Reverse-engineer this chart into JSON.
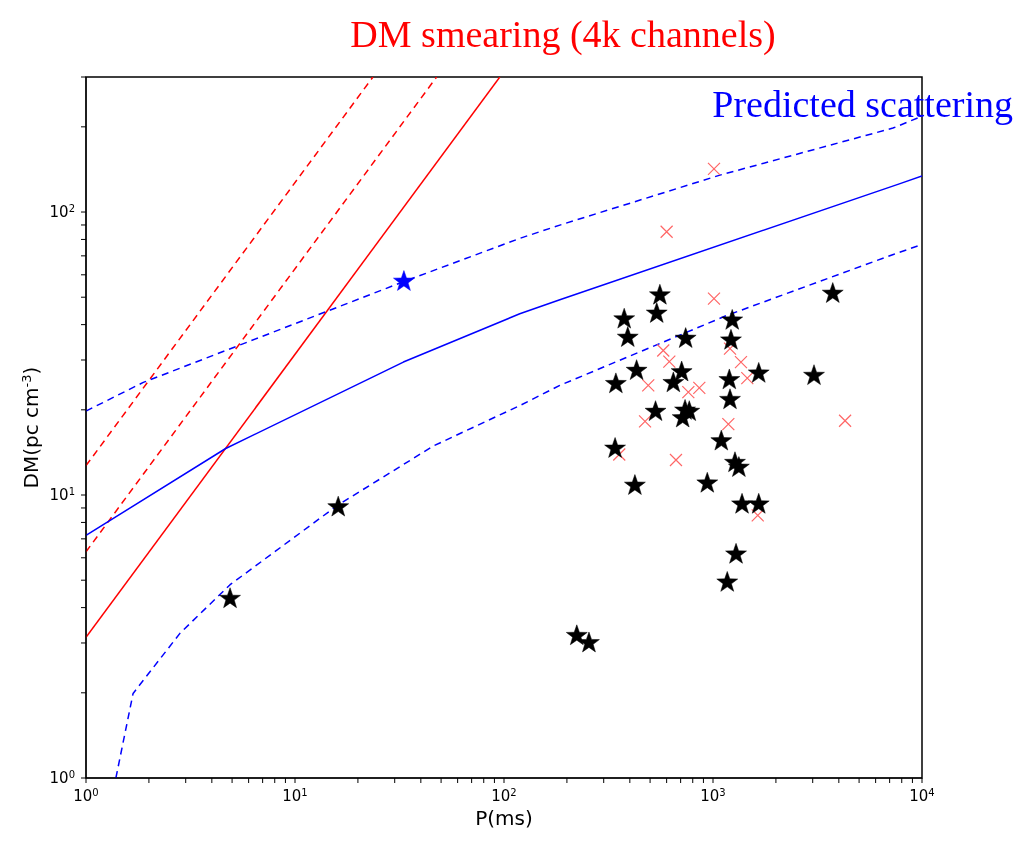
{
  "chart_data": {
    "type": "scatter",
    "title": "DM smearing (4k channels)",
    "annotations": [
      "Predicted scattering"
    ],
    "xlabel": "P(ms)",
    "ylabel": "DM(pc cm$^{-3}$)",
    "log": "xy",
    "xlim": [
      1,
      10000
    ],
    "ylim": [
      1,
      300
    ],
    "xticks": [
      {
        "value": 1,
        "label": "10$^{0}$"
      },
      {
        "value": 2,
        "label": null
      },
      {
        "value": 3,
        "label": null
      },
      {
        "value": 4,
        "label": null
      },
      {
        "value": 5,
        "label": null
      },
      {
        "value": 6,
        "label": null
      },
      {
        "value": 7,
        "label": null
      },
      {
        "value": 8,
        "label": null
      },
      {
        "value": 9,
        "label": null
      },
      {
        "value": 10,
        "label": "10$^{1}$"
      },
      {
        "value": 20,
        "label": null
      },
      {
        "value": 30,
        "label": null
      },
      {
        "value": 40,
        "label": null
      },
      {
        "value": 50,
        "label": null
      },
      {
        "value": 60,
        "label": null
      },
      {
        "value": 70,
        "label": null
      },
      {
        "value": 80,
        "label": null
      },
      {
        "value": 90,
        "label": null
      },
      {
        "value": 100,
        "label": "10$^{2}$"
      },
      {
        "value": 200,
        "label": null
      },
      {
        "value": 300,
        "label": null
      },
      {
        "value": 400,
        "label": null
      },
      {
        "value": 500,
        "label": null
      },
      {
        "value": 600,
        "label": null
      },
      {
        "value": 700,
        "label": null
      },
      {
        "value": 800,
        "label": null
      },
      {
        "value": 900,
        "label": null
      },
      {
        "value": 1000,
        "label": "10$^{3}$"
      },
      {
        "value": 2000,
        "label": null
      },
      {
        "value": 3000,
        "label": null
      },
      {
        "value": 4000,
        "label": null
      },
      {
        "value": 5000,
        "label": null
      },
      {
        "value": 6000,
        "label": null
      },
      {
        "value": 7000,
        "label": null
      },
      {
        "value": 8000,
        "label": null
      },
      {
        "value": 9000,
        "label": null
      },
      {
        "value": 10000,
        "label": "10$^{4}$"
      }
    ],
    "yticks": [
      {
        "value": 1,
        "label": "10$^{0}$"
      },
      {
        "value": 2,
        "label": null
      },
      {
        "value": 3,
        "label": null
      },
      {
        "value": 4,
        "label": null
      },
      {
        "value": 5,
        "label": null
      },
      {
        "value": 6,
        "label": null
      },
      {
        "value": 7,
        "label": null
      },
      {
        "value": 8,
        "label": null
      },
      {
        "value": 9,
        "label": null
      },
      {
        "value": 10,
        "label": "10$^{1}$"
      },
      {
        "value": 20,
        "label": null
      },
      {
        "value": 30,
        "label": null
      },
      {
        "value": 40,
        "label": null
      },
      {
        "value": 50,
        "label": null
      },
      {
        "value": 60,
        "label": null
      },
      {
        "value": 70,
        "label": null
      },
      {
        "value": 80,
        "label": null
      },
      {
        "value": 90,
        "label": null
      },
      {
        "value": 100,
        "label": "10$^{2}$"
      },
      {
        "value": 200,
        "label": null
      },
      {
        "value": 300,
        "label": null
      }
    ],
    "series": [
      {
        "type": "line",
        "color": "#ff0000",
        "line_style": "solid",
        "marker": "none",
        "x": [
          1,
          95.5
        ],
        "values": [
          3.14,
          300
        ]
      },
      {
        "type": "line",
        "color": "#ff0000",
        "line_style": "dashed",
        "marker": "none",
        "x": [
          1,
          23.6
        ],
        "values": [
          12.7,
          300
        ]
      },
      {
        "type": "line",
        "color": "#ff0000",
        "line_style": "dashed",
        "marker": "none",
        "x": [
          1,
          47.6
        ],
        "values": [
          6.3,
          300
        ]
      },
      {
        "type": "line",
        "color": "#0000ff",
        "line_style": "solid",
        "marker": "none",
        "x": [
          1,
          4.66,
          33,
          119,
          185,
          7852,
          10000
        ],
        "values": [
          7.2,
          14.6,
          29.5,
          43.7,
          49,
          126,
          134
        ]
      },
      {
        "type": "line",
        "color": "#0000ff",
        "line_style": "dashed",
        "marker": "none",
        "x": [
          1,
          1.88,
          33.2,
          119,
          185,
          1079,
          7262,
          10000
        ],
        "values": [
          19.8,
          25,
          56.8,
          80.7,
          89.9,
          135,
          198,
          218
        ]
      },
      {
        "type": "line",
        "color": "#0000ff",
        "line_style": "dashed",
        "marker": "none",
        "x": [
          1.39,
          1.68,
          2.82,
          4.89,
          16,
          45.9,
          119,
          185,
          1164,
          7290,
          10000
        ],
        "values": [
          1,
          1.99,
          3.25,
          4.82,
          9.2,
          14.9,
          20.7,
          24.4,
          43.1,
          70.8,
          76.8
        ]
      },
      {
        "color": "#ff6666",
        "marker": "cross",
        "x": [
          1011,
          600,
          1011,
          578,
          618,
          1361,
          1206,
          490,
          762,
          860,
          1459,
          473,
          1184,
          4285,
          356,
          665,
          1637
        ],
        "values": [
          142,
          85.2,
          49.4,
          32.4,
          29.6,
          29.5,
          32.9,
          24.4,
          23.1,
          23.9,
          25.9,
          18.2,
          17.8,
          18.3,
          13.9,
          13.3,
          8.47
        ]
      },
      {
        "color": "#000000",
        "marker": "star",
        "x": [
          4.89,
          16.1,
          223,
          255,
          557,
          538,
          376,
          391,
          740,
          1236,
          1219,
          3741,
          431,
          343,
          708,
          646,
          1197,
          1655,
          3043,
          1206,
          531,
          716,
          770,
          735,
          340,
          1096,
          1274,
          1330,
          423,
          939,
          1377,
          1655,
          1289,
          1170
        ],
        "values": [
          4.3,
          9.06,
          3.18,
          3.0,
          50.8,
          43.8,
          41.8,
          36.0,
          35.7,
          41.4,
          35.2,
          51.5,
          27.5,
          24.7,
          27.2,
          24.9,
          25.5,
          26.9,
          26.4,
          21.7,
          19.7,
          18.7,
          19.7,
          19.9,
          14.6,
          15.5,
          13.0,
          12.5,
          10.8,
          11.0,
          9.27,
          9.27,
          6.17,
          4.91
        ]
      },
      {
        "color": "#0000ff",
        "marker": "star",
        "x": [
          33.2
        ],
        "values": [
          56.8
        ]
      }
    ]
  }
}
